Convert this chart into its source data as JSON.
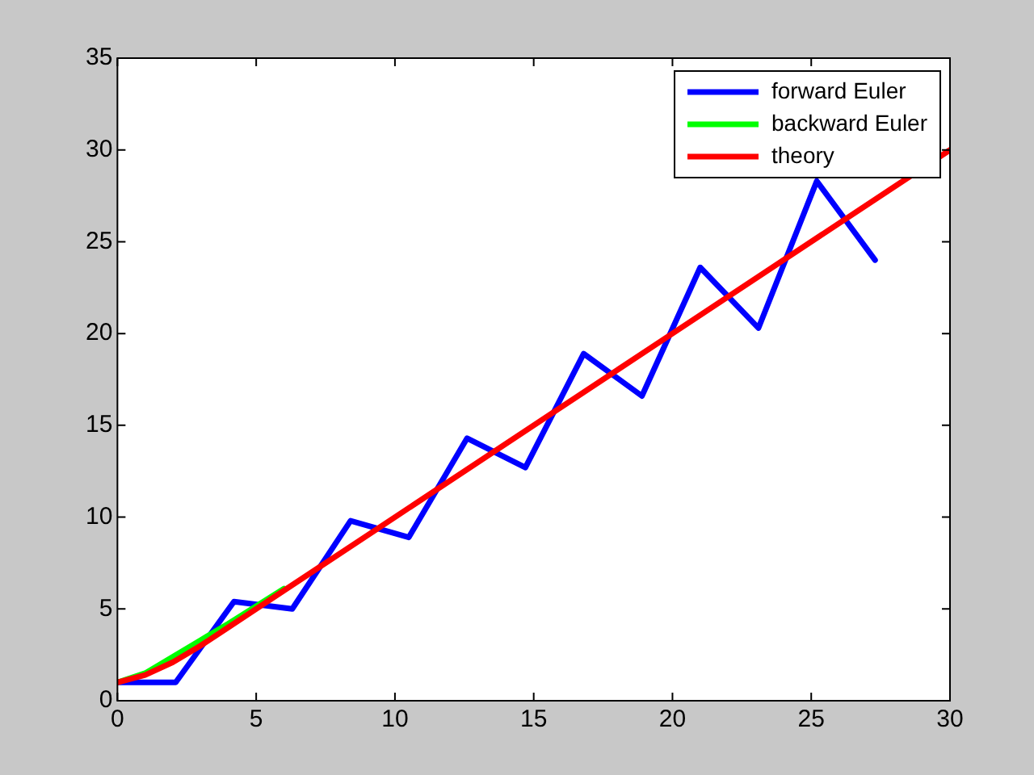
{
  "chart_data": {
    "type": "line",
    "xlim": [
      0,
      30
    ],
    "ylim": [
      0,
      35
    ],
    "xticks": [
      0,
      5,
      10,
      15,
      20,
      25,
      30
    ],
    "yticks": [
      0,
      5,
      10,
      15,
      20,
      25,
      30,
      35
    ],
    "grid": false,
    "legend": "top right",
    "marker": "none",
    "line_style": "solid",
    "series": [
      {
        "name": "forward Euler",
        "color": "#0000ff",
        "x": [
          0,
          2.1,
          4.2,
          6.3,
          8.4,
          10.5,
          12.6,
          14.7,
          16.8,
          18.9,
          21,
          23.1,
          25.2,
          27.3
        ],
        "values": [
          1,
          1,
          5.4,
          5,
          9.8,
          8.9,
          14.3,
          12.7,
          18.9,
          16.6,
          23.6,
          20.3,
          28.3,
          24
        ]
      },
      {
        "name": "backward Euler",
        "color": "#00ff00",
        "x": [
          0,
          1,
          2,
          3,
          4,
          6
        ],
        "values": [
          1,
          1.5,
          2.4,
          3.3,
          4.2,
          6.1
        ]
      },
      {
        "name": "theory",
        "color": "#ff0000",
        "x": [
          0,
          1,
          2,
          3,
          4,
          6,
          10,
          20,
          30
        ],
        "values": [
          1,
          1.4,
          2.1,
          3,
          4,
          6,
          10,
          20,
          30
        ]
      }
    ]
  }
}
